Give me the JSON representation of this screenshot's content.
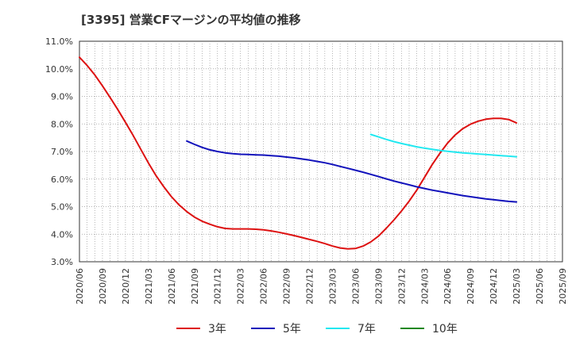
{
  "chart_data": {
    "type": "line",
    "title": "[3395]  営業CFマージンの平均値の推移",
    "xlabel": "",
    "ylabel": "",
    "y_format": "percent_one_decimal",
    "ylim": [
      3.0,
      11.0
    ],
    "y_ticks": [
      "3.0%",
      "4.0%",
      "5.0%",
      "6.0%",
      "7.0%",
      "8.0%",
      "9.0%",
      "10.0%",
      "11.0%"
    ],
    "x_ticks": [
      "2020/06",
      "2020/09",
      "2020/12",
      "2021/03",
      "2021/06",
      "2021/09",
      "2021/12",
      "2022/03",
      "2022/06",
      "2022/09",
      "2022/12",
      "2023/03",
      "2023/06",
      "2023/09",
      "2023/12",
      "2024/03",
      "2024/06",
      "2024/09",
      "2024/12",
      "2025/03",
      "2025/06",
      "2025/09"
    ],
    "grid": true,
    "legend_position": "bottom",
    "series": [
      {
        "name": "3年",
        "color": "#dd1111",
        "x": [
          "2020/06",
          "2020/07",
          "2020/08",
          "2020/09",
          "2020/10",
          "2020/11",
          "2020/12",
          "2021/01",
          "2021/02",
          "2021/03",
          "2021/04",
          "2021/05",
          "2021/06",
          "2021/07",
          "2021/08",
          "2021/09",
          "2021/10",
          "2021/11",
          "2021/12",
          "2022/01",
          "2022/02",
          "2022/03",
          "2022/04",
          "2022/05",
          "2022/06",
          "2022/07",
          "2022/08",
          "2022/09",
          "2022/10",
          "2022/11",
          "2022/12",
          "2023/01",
          "2023/02",
          "2023/03",
          "2023/04",
          "2023/05",
          "2023/06",
          "2023/07",
          "2023/08",
          "2023/09",
          "2023/10",
          "2023/11",
          "2023/12",
          "2024/01",
          "2024/02",
          "2024/03",
          "2024/04",
          "2024/05",
          "2024/06",
          "2024/07",
          "2024/08",
          "2024/09",
          "2024/10",
          "2024/11",
          "2024/12",
          "2025/01",
          "2025/02",
          "2025/03"
        ],
        "values": [
          10.42,
          10.12,
          9.78,
          9.38,
          8.96,
          8.52,
          8.06,
          7.58,
          7.08,
          6.58,
          6.12,
          5.72,
          5.36,
          5.06,
          4.82,
          4.62,
          4.47,
          4.36,
          4.27,
          4.21,
          4.19,
          4.19,
          4.19,
          4.18,
          4.16,
          4.12,
          4.07,
          4.01,
          3.95,
          3.88,
          3.81,
          3.74,
          3.66,
          3.57,
          3.5,
          3.47,
          3.48,
          3.57,
          3.72,
          3.93,
          4.21,
          4.51,
          4.84,
          5.2,
          5.6,
          6.06,
          6.52,
          6.93,
          7.3,
          7.6,
          7.83,
          7.99,
          8.1,
          8.17,
          8.2,
          8.2,
          8.16,
          8.04
        ]
      },
      {
        "name": "5年",
        "color": "#1111bb",
        "x": [
          "2021/08",
          "2021/09",
          "2021/10",
          "2021/11",
          "2021/12",
          "2022/01",
          "2022/02",
          "2022/03",
          "2022/04",
          "2022/05",
          "2022/06",
          "2022/07",
          "2022/08",
          "2022/09",
          "2022/10",
          "2022/11",
          "2022/12",
          "2023/01",
          "2023/02",
          "2023/03",
          "2023/04",
          "2023/05",
          "2023/06",
          "2023/07",
          "2023/08",
          "2023/09",
          "2023/10",
          "2023/11",
          "2023/12",
          "2024/01",
          "2024/02",
          "2024/03",
          "2024/04",
          "2024/05",
          "2024/06",
          "2024/07",
          "2024/08",
          "2024/09",
          "2024/10",
          "2024/11",
          "2024/12",
          "2025/01",
          "2025/02",
          "2025/03"
        ],
        "values": [
          7.38,
          7.26,
          7.15,
          7.06,
          7.0,
          6.95,
          6.92,
          6.9,
          6.89,
          6.88,
          6.87,
          6.85,
          6.83,
          6.8,
          6.77,
          6.73,
          6.69,
          6.64,
          6.59,
          6.53,
          6.46,
          6.39,
          6.32,
          6.25,
          6.17,
          6.09,
          6.01,
          5.93,
          5.86,
          5.79,
          5.72,
          5.66,
          5.6,
          5.55,
          5.5,
          5.45,
          5.4,
          5.36,
          5.32,
          5.28,
          5.25,
          5.22,
          5.19,
          5.17
        ]
      },
      {
        "name": "7年",
        "color": "#22e8f0",
        "x": [
          "2023/08",
          "2023/09",
          "2023/10",
          "2023/11",
          "2023/12",
          "2024/01",
          "2024/02",
          "2024/03",
          "2024/04",
          "2024/05",
          "2024/06",
          "2024/07",
          "2024/08",
          "2024/09",
          "2024/10",
          "2024/11",
          "2024/12",
          "2025/01",
          "2025/02",
          "2025/03"
        ],
        "values": [
          7.62,
          7.53,
          7.44,
          7.36,
          7.29,
          7.23,
          7.17,
          7.12,
          7.08,
          7.04,
          7.01,
          6.98,
          6.95,
          6.93,
          6.91,
          6.89,
          6.87,
          6.85,
          6.83,
          6.81
        ]
      },
      {
        "name": "10年",
        "color": "#228822",
        "x": [],
        "values": []
      }
    ]
  }
}
